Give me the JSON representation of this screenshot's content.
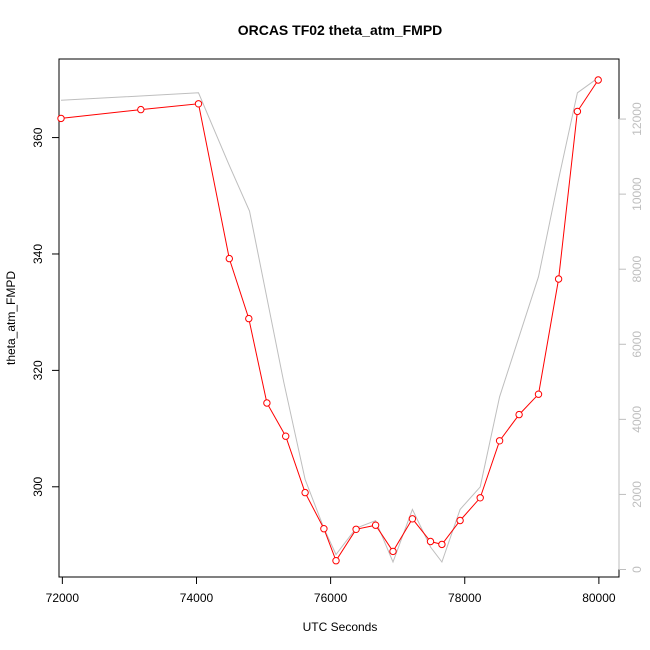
{
  "chart_data": {
    "type": "line",
    "title": "ORCAS TF02 theta_atm_FMPD",
    "xlabel": "UTC Seconds",
    "ylabel": "theta_atm_FMPD",
    "xlim": [
      71950,
      80300
    ],
    "ylim": [
      284.5,
      373.5
    ],
    "y2lim": [
      -200,
      13600
    ],
    "x_ticks": [
      72000,
      74000,
      76000,
      78000,
      80000
    ],
    "y_ticks": [
      300,
      320,
      340,
      360
    ],
    "y2_ticks": [
      0,
      2000,
      4000,
      6000,
      8000,
      10000,
      12000
    ],
    "grid": false,
    "series": [
      {
        "axis": "left",
        "color": "#ff0000",
        "marker": "open-circle",
        "points": [
          {
            "x": 71980,
            "y": 363.3
          },
          {
            "x": 73170,
            "y": 364.8
          },
          {
            "x": 74030,
            "y": 365.8
          },
          {
            "x": 74490,
            "y": 339.2
          },
          {
            "x": 74780,
            "y": 328.9
          },
          {
            "x": 75050,
            "y": 314.4
          },
          {
            "x": 75330,
            "y": 308.7
          },
          {
            "x": 75620,
            "y": 299.0
          },
          {
            "x": 75900,
            "y": 292.8
          },
          {
            "x": 76080,
            "y": 287.3
          },
          {
            "x": 76380,
            "y": 292.7
          },
          {
            "x": 76670,
            "y": 293.4
          },
          {
            "x": 76930,
            "y": 288.9
          },
          {
            "x": 77220,
            "y": 294.5
          },
          {
            "x": 77490,
            "y": 290.6
          },
          {
            "x": 77660,
            "y": 290.1
          },
          {
            "x": 77930,
            "y": 294.2
          },
          {
            "x": 78230,
            "y": 298.1
          },
          {
            "x": 78520,
            "y": 307.9
          },
          {
            "x": 78810,
            "y": 312.4
          },
          {
            "x": 79100,
            "y": 315.9
          },
          {
            "x": 79400,
            "y": 335.7
          },
          {
            "x": 79680,
            "y": 364.5
          },
          {
            "x": 79990,
            "y": 369.9
          }
        ]
      },
      {
        "axis": "right",
        "color": "#bebebe",
        "marker": "none",
        "points": [
          {
            "x": 71980,
            "y": 12500
          },
          {
            "x": 74030,
            "y": 12700
          },
          {
            "x": 74480,
            "y": 10800
          },
          {
            "x": 74790,
            "y": 9550
          },
          {
            "x": 75300,
            "y": 5000
          },
          {
            "x": 75620,
            "y": 2400
          },
          {
            "x": 75900,
            "y": 1100
          },
          {
            "x": 76080,
            "y": 400
          },
          {
            "x": 76380,
            "y": 1100
          },
          {
            "x": 76670,
            "y": 1300
          },
          {
            "x": 76930,
            "y": 200
          },
          {
            "x": 77220,
            "y": 1600
          },
          {
            "x": 77490,
            "y": 600
          },
          {
            "x": 77660,
            "y": 200
          },
          {
            "x": 77930,
            "y": 1600
          },
          {
            "x": 78230,
            "y": 2200
          },
          {
            "x": 78520,
            "y": 4600
          },
          {
            "x": 79100,
            "y": 7800
          },
          {
            "x": 79400,
            "y": 10400
          },
          {
            "x": 79680,
            "y": 12700
          },
          {
            "x": 79990,
            "y": 13100
          }
        ]
      }
    ]
  }
}
